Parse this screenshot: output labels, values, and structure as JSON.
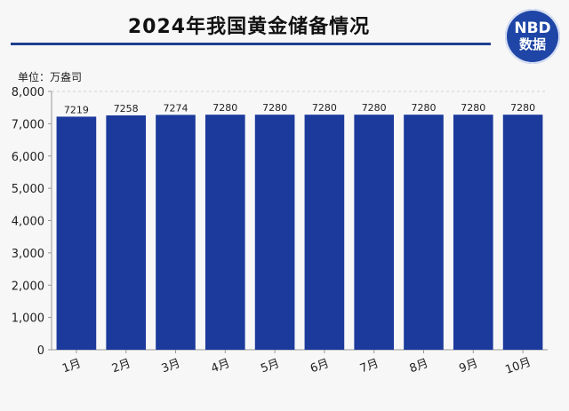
{
  "title": "2024年我国黄金储备情况",
  "logo": {
    "line1": "NBD",
    "line2": "数据",
    "color": "#1f46a6"
  },
  "unit_label": "单位：万盎司",
  "colors": {
    "bar": "#1b3a9c",
    "axis": "#999999",
    "grid": "#cfcfcf"
  },
  "chart_data": {
    "type": "bar",
    "title": "2024年我国黄金储备情况",
    "categories": [
      "1月",
      "2月",
      "3月",
      "4月",
      "5月",
      "6月",
      "7月",
      "8月",
      "9月",
      "10月"
    ],
    "values": [
      7219,
      7258,
      7274,
      7280,
      7280,
      7280,
      7280,
      7280,
      7280,
      7280
    ],
    "ylim": [
      0,
      8000
    ],
    "yticks": [
      0,
      1000,
      2000,
      3000,
      4000,
      5000,
      6000,
      7000,
      8000
    ],
    "ytick_labels": [
      "0",
      "1,000",
      "2,000",
      "3,000",
      "4,000",
      "5,000",
      "6,000",
      "7,000",
      "8,000"
    ],
    "ylabel": "单位：万盎司",
    "grid": true,
    "legend": "none"
  }
}
